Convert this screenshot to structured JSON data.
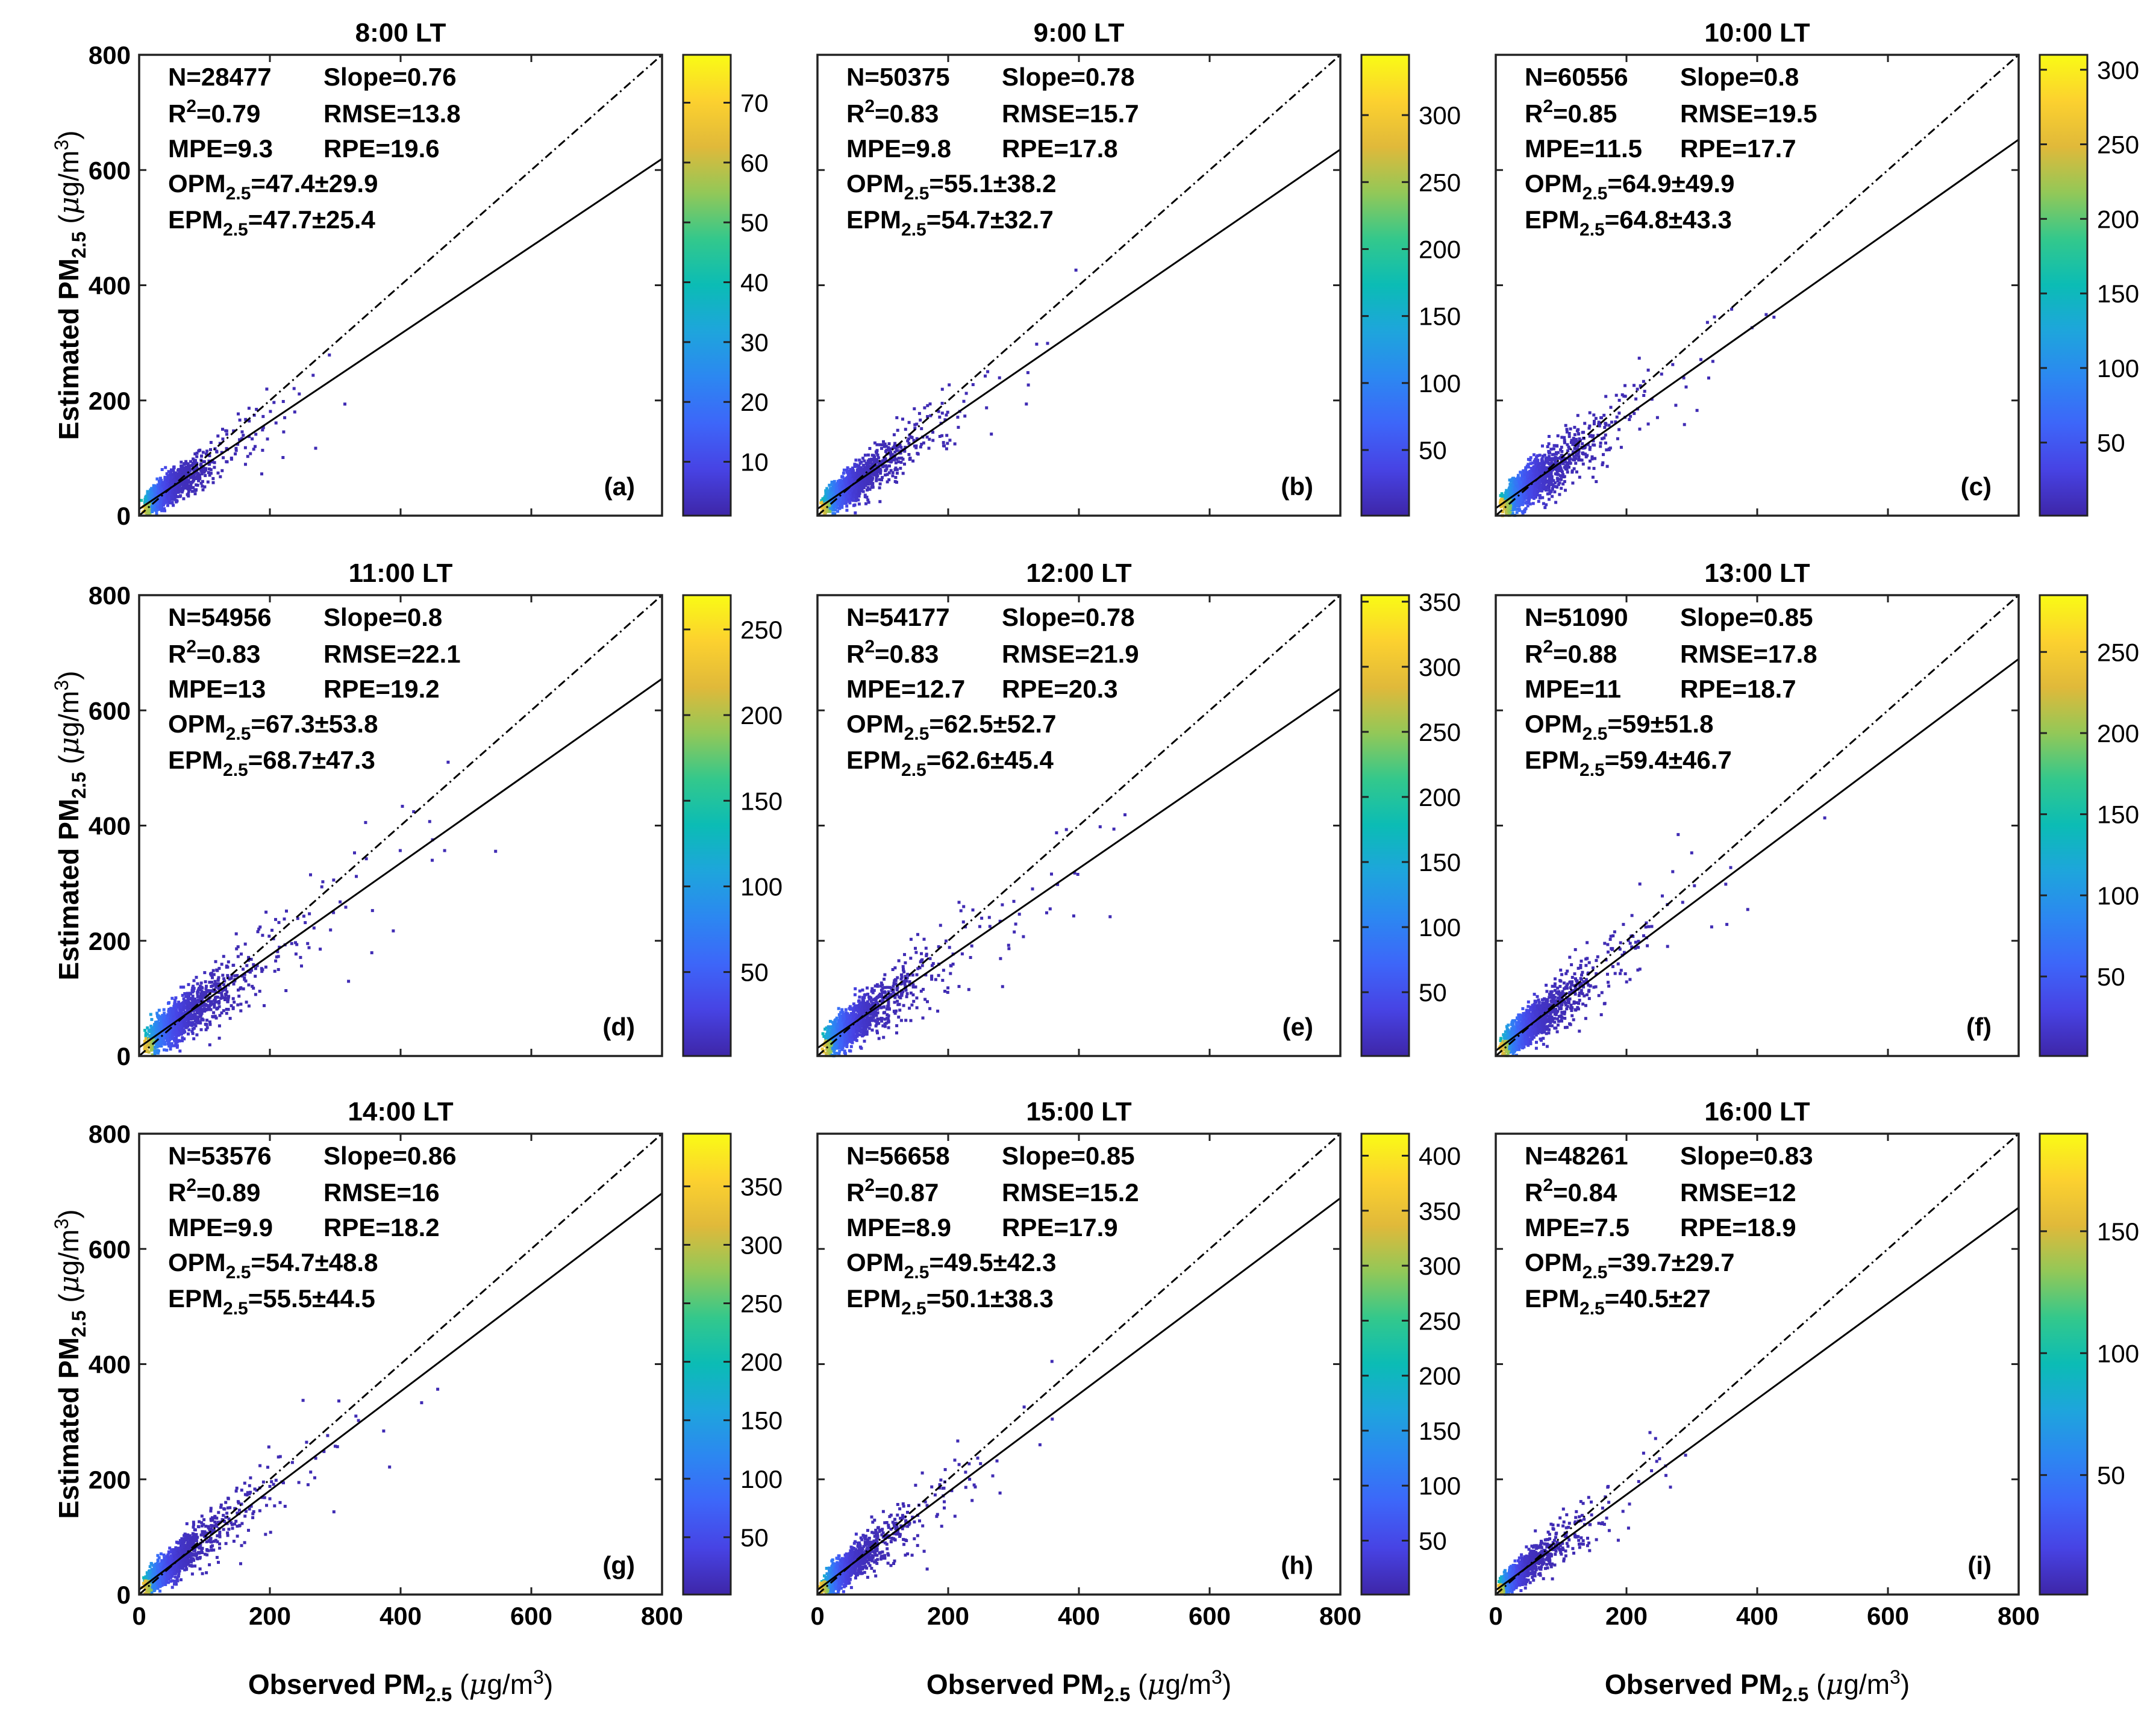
{
  "figure": {
    "y_axis_label": "Estimated PM",
    "x_axis_label": "Observed PM",
    "pm_subscript": "2.5",
    "unit_open": " (",
    "unit_mu": "μ",
    "unit_rest": "g/m",
    "unit_sup": "3",
    "unit_close": ")",
    "plus_minus": "±"
  },
  "colormap": [
    "#3e26a8",
    "#4743e4",
    "#3d66f9",
    "#2c87f1",
    "#1ea5dc",
    "#0bbcb5",
    "#33c88c",
    "#92c858",
    "#e0b93a",
    "#fcd12f",
    "#f9fb15"
  ],
  "chart_data": [
    {
      "type": "scatter",
      "title": "8:00 LT",
      "panel_label": "(a)",
      "xlim": [
        0,
        800
      ],
      "ylim": [
        0,
        800
      ],
      "xticks": [
        0,
        200,
        400,
        600,
        800
      ],
      "yticks": [
        0,
        200,
        400,
        600,
        800
      ],
      "regression": {
        "slope": 0.76,
        "intercept": 11.5
      },
      "one_to_one": true,
      "density_max": 78,
      "colorbar_ticks": [
        10,
        20,
        30,
        40,
        50,
        60,
        70
      ],
      "stats": {
        "N": "28477",
        "Slope": "0.76",
        "R2": "0.79",
        "RMSE": "13.8",
        "MPE": "9.3",
        "RPE": "19.6",
        "OPM_mean": "47.4",
        "OPM_sd": "29.9",
        "EPM_mean": "47.7",
        "EPM_sd": "25.4"
      },
      "labels": {
        "N": "N=28477",
        "Slope": "Slope=0.76",
        "R": "R",
        "R2": "=0.79",
        "RMSE": "RMSE=13.8",
        "MPE": "MPE=9.3",
        "RPE": "RPE=19.6",
        "OPM": "OPM",
        "OPM_vals": "=47.4±29.9",
        "EPM": "EPM",
        "EPM_vals": "=47.7±25.4"
      }
    },
    {
      "type": "scatter",
      "title": "9:00 LT",
      "panel_label": "(b)",
      "xlim": [
        0,
        800
      ],
      "ylim": [
        0,
        800
      ],
      "xticks": [
        0,
        200,
        400,
        600,
        800
      ],
      "yticks": [
        0,
        200,
        400,
        600,
        800
      ],
      "regression": {
        "slope": 0.78,
        "intercept": 11.7
      },
      "one_to_one": true,
      "density_max": 345,
      "colorbar_ticks": [
        50,
        100,
        150,
        200,
        250,
        300
      ],
      "stats": {
        "N": "50375",
        "Slope": "0.78",
        "R2": "0.83",
        "RMSE": "15.7",
        "MPE": "9.8",
        "RPE": "17.8",
        "OPM_mean": "55.1",
        "OPM_sd": "38.2",
        "EPM_mean": "54.7",
        "EPM_sd": "32.7"
      },
      "labels": {
        "N": "N=50375",
        "Slope": "Slope=0.78",
        "R": "R",
        "R2": "=0.83",
        "RMSE": "RMSE=15.7",
        "MPE": "MPE=9.8",
        "RPE": "RPE=17.8",
        "OPM": "OPM",
        "OPM_vals": "=55.1±38.2",
        "EPM": "EPM",
        "EPM_vals": "=54.7±32.7"
      }
    },
    {
      "type": "scatter",
      "title": "10:00 LT",
      "panel_label": "(c)",
      "xlim": [
        0,
        800
      ],
      "ylim": [
        0,
        800
      ],
      "xticks": [
        0,
        200,
        400,
        600,
        800
      ],
      "yticks": [
        0,
        200,
        400,
        600,
        800
      ],
      "regression": {
        "slope": 0.8,
        "intercept": 12.9
      },
      "one_to_one": true,
      "density_max": 310,
      "colorbar_ticks": [
        50,
        100,
        150,
        200,
        250,
        300
      ],
      "stats": {
        "N": "60556",
        "Slope": "0.8",
        "R2": "0.85",
        "RMSE": "19.5",
        "MPE": "11.5",
        "RPE": "17.7",
        "OPM_mean": "64.9",
        "OPM_sd": "49.9",
        "EPM_mean": "64.8",
        "EPM_sd": "43.3"
      },
      "labels": {
        "N": "N=60556",
        "Slope": "Slope=0.8",
        "R": "R",
        "R2": "=0.85",
        "RMSE": "RMSE=19.5",
        "MPE": "MPE=11.5",
        "RPE": "RPE=17.7",
        "OPM": "OPM",
        "OPM_vals": "=64.9±49.9",
        "EPM": "EPM",
        "EPM_vals": "=64.8±43.3"
      }
    },
    {
      "type": "scatter",
      "title": "11:00 LT",
      "panel_label": "(d)",
      "xlim": [
        0,
        800
      ],
      "ylim": [
        0,
        800
      ],
      "xticks": [
        0,
        200,
        400,
        600,
        800
      ],
      "yticks": [
        0,
        200,
        400,
        600,
        800
      ],
      "regression": {
        "slope": 0.8,
        "intercept": 14.9
      },
      "one_to_one": true,
      "density_max": 270,
      "colorbar_ticks": [
        50,
        100,
        150,
        200,
        250
      ],
      "stats": {
        "N": "54956",
        "Slope": "0.8",
        "R2": "0.83",
        "RMSE": "22.1",
        "MPE": "13",
        "RPE": "19.2",
        "OPM_mean": "67.3",
        "OPM_sd": "53.8",
        "EPM_mean": "68.7",
        "EPM_sd": "47.3"
      },
      "labels": {
        "N": "N=54956",
        "Slope": "Slope=0.8",
        "R": "R",
        "R2": "=0.83",
        "RMSE": "RMSE=22.1",
        "MPE": "MPE=13",
        "RPE": "RPE=19.2",
        "OPM": "OPM",
        "OPM_vals": "=67.3±53.8",
        "EPM": "EPM",
        "EPM_vals": "=68.7±47.3"
      }
    },
    {
      "type": "scatter",
      "title": "12:00 LT",
      "panel_label": "(e)",
      "xlim": [
        0,
        800
      ],
      "ylim": [
        0,
        800
      ],
      "xticks": [
        0,
        200,
        400,
        600,
        800
      ],
      "yticks": [
        0,
        200,
        400,
        600,
        800
      ],
      "regression": {
        "slope": 0.78,
        "intercept": 13.8
      },
      "one_to_one": true,
      "density_max": 355,
      "colorbar_ticks": [
        50,
        100,
        150,
        200,
        250,
        300,
        350
      ],
      "stats": {
        "N": "54177",
        "Slope": "0.78",
        "R2": "0.83",
        "RMSE": "21.9",
        "MPE": "12.7",
        "RPE": "20.3",
        "OPM_mean": "62.5",
        "OPM_sd": "52.7",
        "EPM_mean": "62.6",
        "EPM_sd": "45.4"
      },
      "labels": {
        "N": "N=54177",
        "Slope": "Slope=0.78",
        "R": "R",
        "R2": "=0.83",
        "RMSE": "RMSE=21.9",
        "MPE": "MPE=12.7",
        "RPE": "RPE=20.3",
        "OPM": "OPM",
        "OPM_vals": "=62.5±52.7",
        "EPM": "EPM",
        "EPM_vals": "=62.6±45.4"
      }
    },
    {
      "type": "scatter",
      "title": "13:00 LT",
      "panel_label": "(f)",
      "xlim": [
        0,
        800
      ],
      "ylim": [
        0,
        800
      ],
      "xticks": [
        0,
        200,
        400,
        600,
        800
      ],
      "yticks": [
        0,
        200,
        400,
        600,
        800
      ],
      "regression": {
        "slope": 0.85,
        "intercept": 9.2
      },
      "one_to_one": true,
      "density_max": 285,
      "colorbar_ticks": [
        50,
        100,
        150,
        200,
        250
      ],
      "stats": {
        "N": "51090",
        "Slope": "0.85",
        "R2": "0.88",
        "RMSE": "17.8",
        "MPE": "11",
        "RPE": "18.7",
        "OPM_mean": "59",
        "OPM_sd": "51.8",
        "EPM_mean": "59.4",
        "EPM_sd": "46.7"
      },
      "labels": {
        "N": "N=51090",
        "Slope": "Slope=0.85",
        "R": "R",
        "R2": "=0.88",
        "RMSE": "RMSE=17.8",
        "MPE": "MPE=11",
        "RPE": "RPE=18.7",
        "OPM": "OPM",
        "OPM_vals": "=59±51.8",
        "EPM": "EPM",
        "EPM_vals": "=59.4±46.7"
      }
    },
    {
      "type": "scatter",
      "title": "14:00 LT",
      "panel_label": "(g)",
      "xlim": [
        0,
        800
      ],
      "ylim": [
        0,
        800
      ],
      "xticks": [
        0,
        200,
        400,
        600,
        800
      ],
      "yticks": [
        0,
        200,
        400,
        600,
        800
      ],
      "regression": {
        "slope": 0.86,
        "intercept": 8.5
      },
      "one_to_one": true,
      "density_max": 395,
      "colorbar_ticks": [
        50,
        100,
        150,
        200,
        250,
        300,
        350
      ],
      "stats": {
        "N": "53576",
        "Slope": "0.86",
        "R2": "0.89",
        "RMSE": "16",
        "MPE": "9.9",
        "RPE": "18.2",
        "OPM_mean": "54.7",
        "OPM_sd": "48.8",
        "EPM_mean": "55.5",
        "EPM_sd": "44.5"
      },
      "labels": {
        "N": "N=53576",
        "Slope": "Slope=0.86",
        "R": "R",
        "R2": "=0.89",
        "RMSE": "RMSE=16",
        "MPE": "MPE=9.9",
        "RPE": "RPE=18.2",
        "OPM": "OPM",
        "OPM_vals": "=54.7±48.8",
        "EPM": "EPM",
        "EPM_vals": "=55.5±44.5"
      }
    },
    {
      "type": "scatter",
      "title": "15:00 LT",
      "panel_label": "(h)",
      "xlim": [
        0,
        800
      ],
      "ylim": [
        0,
        800
      ],
      "xticks": [
        0,
        200,
        400,
        600,
        800
      ],
      "yticks": [
        0,
        200,
        400,
        600,
        800
      ],
      "regression": {
        "slope": 0.85,
        "intercept": 8.0
      },
      "one_to_one": true,
      "density_max": 420,
      "colorbar_ticks": [
        50,
        100,
        150,
        200,
        250,
        300,
        350,
        400
      ],
      "stats": {
        "N": "56658",
        "Slope": "0.85",
        "R2": "0.87",
        "RMSE": "15.2",
        "MPE": "8.9",
        "RPE": "17.9",
        "OPM_mean": "49.5",
        "OPM_sd": "42.3",
        "EPM_mean": "50.1",
        "EPM_sd": "38.3"
      },
      "labels": {
        "N": "N=56658",
        "Slope": "Slope=0.85",
        "R": "R",
        "R2": "=0.87",
        "RMSE": "RMSE=15.2",
        "MPE": "MPE=8.9",
        "RPE": "RPE=17.9",
        "OPM": "OPM",
        "OPM_vals": "=49.5±42.3",
        "EPM": "EPM",
        "EPM_vals": "=50.1±38.3"
      }
    },
    {
      "type": "scatter",
      "title": "16:00 LT",
      "panel_label": "(i)",
      "xlim": [
        0,
        800
      ],
      "ylim": [
        0,
        800
      ],
      "xticks": [
        0,
        200,
        400,
        600,
        800
      ],
      "yticks": [
        0,
        200,
        400,
        600,
        800
      ],
      "regression": {
        "slope": 0.83,
        "intercept": 7.5
      },
      "one_to_one": true,
      "density_max": 190,
      "colorbar_ticks": [
        50,
        100,
        150
      ],
      "stats": {
        "N": "48261",
        "Slope": "0.83",
        "R2": "0.84",
        "RMSE": "12",
        "MPE": "7.5",
        "RPE": "18.9",
        "OPM_mean": "39.7",
        "OPM_sd": "29.7",
        "EPM_mean": "40.5",
        "EPM_sd": "27"
      },
      "labels": {
        "N": "N=48261",
        "Slope": "Slope=0.83",
        "R": "R",
        "R2": "=0.84",
        "RMSE": "RMSE=12",
        "MPE": "MPE=7.5",
        "RPE": "RPE=18.9",
        "OPM": "OPM",
        "OPM_vals": "=39.7±29.7",
        "EPM": "EPM",
        "EPM_vals": "=40.5±27"
      }
    }
  ]
}
